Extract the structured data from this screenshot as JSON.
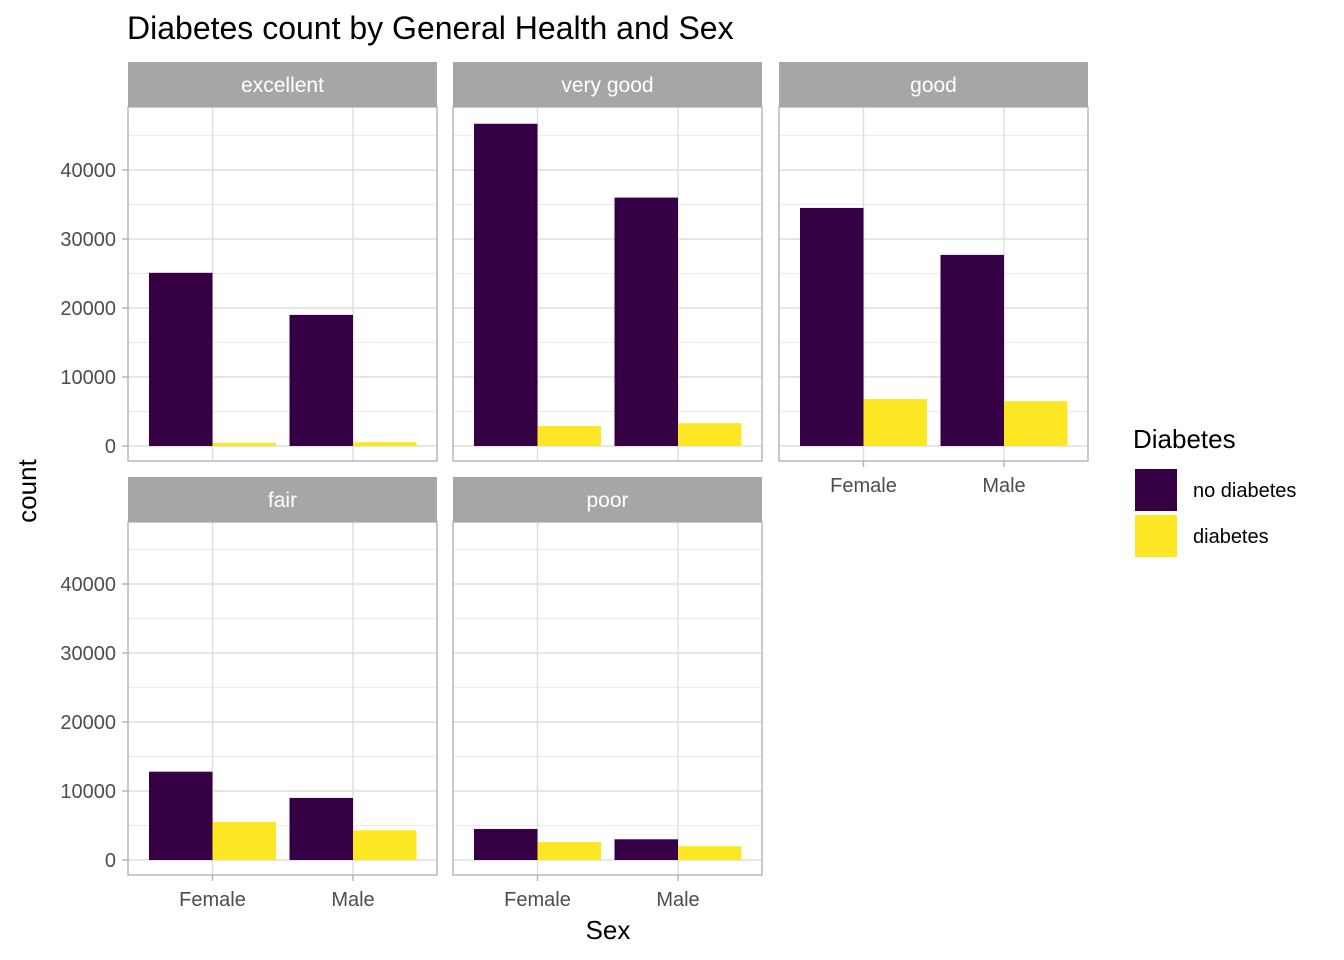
{
  "chart_data": {
    "type": "bar",
    "title": "Diabetes count by General Health and Sex",
    "xlabel": "Sex",
    "ylabel": "count",
    "categories": [
      "Female",
      "Male"
    ],
    "ylim": [
      0,
      50000
    ],
    "yticks": [
      0,
      10000,
      20000,
      30000,
      40000
    ],
    "grid": true,
    "legend": {
      "title": "Diabetes",
      "placement": "right",
      "entries": [
        {
          "name": "no diabetes",
          "color": "#360045"
        },
        {
          "name": "diabetes",
          "color": "#FDE725"
        }
      ]
    },
    "facets": [
      {
        "label": "excellent",
        "series": [
          {
            "name": "no diabetes",
            "values": [
              25100,
              19000
            ]
          },
          {
            "name": "diabetes",
            "values": [
              450,
              550
            ]
          }
        ]
      },
      {
        "label": "very good",
        "series": [
          {
            "name": "no diabetes",
            "values": [
              46700,
              36000
            ]
          },
          {
            "name": "diabetes",
            "values": [
              2900,
              3300
            ]
          }
        ]
      },
      {
        "label": "good",
        "series": [
          {
            "name": "no diabetes",
            "values": [
              34500,
              27700
            ]
          },
          {
            "name": "diabetes",
            "values": [
              6800,
              6500
            ]
          }
        ]
      },
      {
        "label": "fair",
        "series": [
          {
            "name": "no diabetes",
            "values": [
              12800,
              9000
            ]
          },
          {
            "name": "diabetes",
            "values": [
              5500,
              4300
            ]
          }
        ]
      },
      {
        "label": "poor",
        "series": [
          {
            "name": "no diabetes",
            "values": [
              4500,
              3000
            ]
          },
          {
            "name": "diabetes",
            "values": [
              2600,
              2000
            ]
          }
        ]
      }
    ]
  }
}
